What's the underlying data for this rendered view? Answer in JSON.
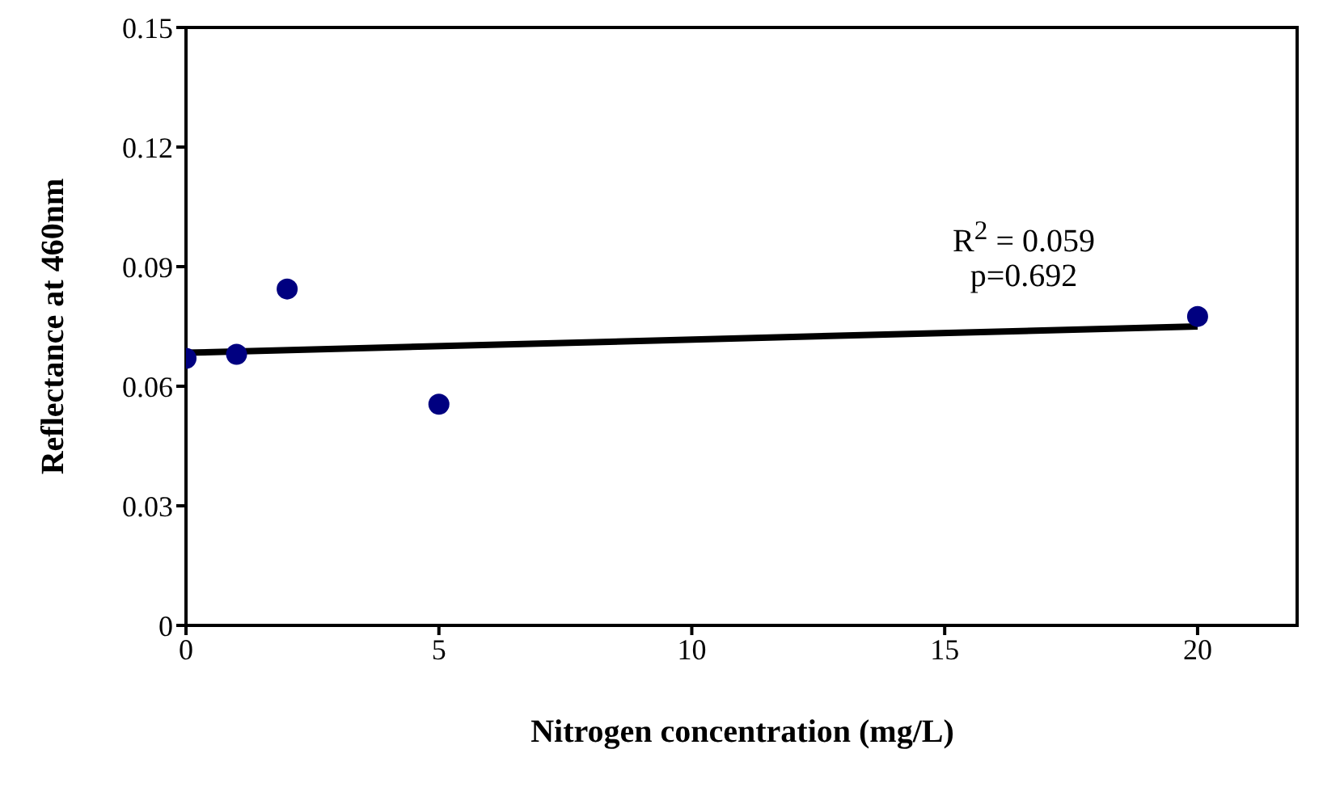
{
  "chart_data": {
    "type": "scatter",
    "xlabel": "Nitrogen concentration (mg/L)",
    "ylabel": "Reflectance at 460nm",
    "x": [
      0,
      1,
      2,
      5,
      20
    ],
    "series": [
      {
        "type": "scatter",
        "color": "#000080",
        "values": [
          0.067,
          0.068,
          0.0844,
          0.0555,
          0.0775
        ],
        "marker": "circle"
      },
      {
        "type": "line",
        "color": "#000000",
        "x": [
          0,
          20
        ],
        "values": [
          0.0684,
          0.075
        ],
        "line_style": "solid",
        "marker": "none"
      }
    ],
    "xlim": [
      0,
      22
    ],
    "xticks": [
      0,
      5,
      10,
      15,
      20
    ],
    "ylim": [
      0,
      0.15
    ],
    "yticks": [
      0,
      0.03,
      0.06,
      0.09,
      0.12,
      0.15
    ],
    "grid": false,
    "annotations": [
      "R$^{2}$ = 0.059",
      "p=0.692"
    ]
  }
}
